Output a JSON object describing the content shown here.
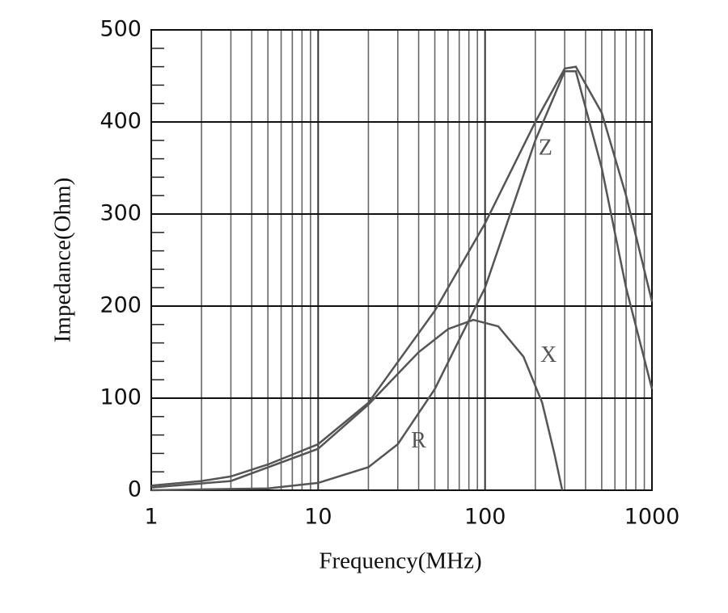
{
  "chart_data": {
    "type": "line",
    "x_label": "Frequency(MHz)",
    "y_label": "Impedance(Ohm)",
    "xscale": "log",
    "xlim": [
      1,
      1000
    ],
    "xticks": [
      1,
      10,
      100,
      1000
    ],
    "x_minor_grid": [
      2,
      3,
      4,
      5,
      6,
      7,
      8,
      9,
      20,
      30,
      40,
      50,
      60,
      70,
      80,
      90,
      200,
      300,
      400,
      500,
      600,
      700,
      800,
      900
    ],
    "ylim": [
      0,
      500
    ],
    "yticks": [
      0,
      100,
      200,
      300,
      400,
      500
    ],
    "y_minor_ticks": [
      20,
      40,
      60,
      80,
      120,
      140,
      160,
      180,
      220,
      240,
      260,
      280,
      320,
      340,
      360,
      380,
      420,
      440,
      460,
      480
    ],
    "grid": true,
    "series": [
      {
        "name": "Z",
        "color": "#555555",
        "x": [
          1,
          2,
          3,
          5,
          10,
          20,
          50,
          100,
          200,
          300,
          350,
          500,
          700,
          1000
        ],
        "values": [
          5,
          10,
          15,
          28,
          50,
          95,
          195,
          290,
          400,
          458,
          460,
          410,
          320,
          205
        ]
      },
      {
        "name": "X",
        "color": "#555555",
        "x": [
          1,
          3,
          10,
          20,
          40,
          60,
          85,
          120,
          170,
          220,
          260,
          290
        ],
        "values": [
          3,
          10,
          45,
          93,
          150,
          175,
          185,
          178,
          145,
          95,
          40,
          0
        ]
      },
      {
        "name": "R",
        "color": "#555555",
        "x": [
          1,
          5,
          10,
          20,
          30,
          50,
          100,
          200,
          300,
          350,
          500,
          700,
          1000
        ],
        "values": [
          0,
          2,
          8,
          25,
          50,
          110,
          220,
          380,
          455,
          455,
          350,
          220,
          110
        ]
      }
    ],
    "annotations": [
      {
        "text": "Z",
        "x": 230,
        "y": 370
      },
      {
        "text": "X",
        "x": 240,
        "y": 145
      },
      {
        "text": "R",
        "x": 40,
        "y": 52
      }
    ]
  }
}
